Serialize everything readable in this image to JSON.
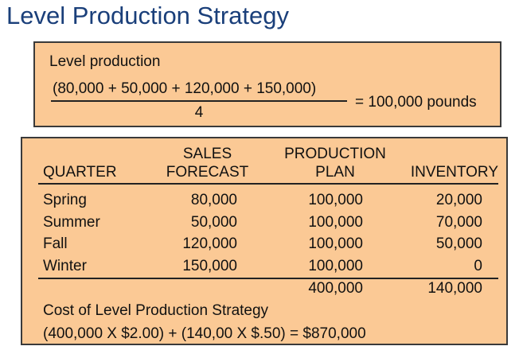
{
  "title": "Level Production Strategy",
  "formula": {
    "heading": "Level production",
    "numerator": "(80,000 + 50,000 + 120,000 + 150,000)",
    "denominator": "4",
    "result": "= 100,000 pounds"
  },
  "table": {
    "headers": {
      "quarter": "QUARTER",
      "sales_line1": "SALES",
      "sales_line2": "FORECAST",
      "production_line1": "PRODUCTION",
      "production_line2": "PLAN",
      "inventory": "INVENTORY"
    },
    "rows": [
      {
        "quarter": "Spring",
        "sales": "80,000",
        "production": "100,000",
        "inventory": "20,000"
      },
      {
        "quarter": "Summer",
        "sales": "50,000",
        "production": "100,000",
        "inventory": "70,000"
      },
      {
        "quarter": "Fall",
        "sales": "120,000",
        "production": "100,000",
        "inventory": "50,000"
      },
      {
        "quarter": "Winter",
        "sales": "150,000",
        "production": "100,000",
        "inventory": "0"
      }
    ],
    "totals": {
      "production": "400,000",
      "inventory": "140,000"
    }
  },
  "cost": {
    "heading": "Cost of Level Production Strategy",
    "calculation": "(400,000 X $2.00) + (140,00 X $.50) =  $870,000"
  },
  "colors": {
    "title": "#1a3f7a",
    "box_fill": "#fbc995"
  }
}
